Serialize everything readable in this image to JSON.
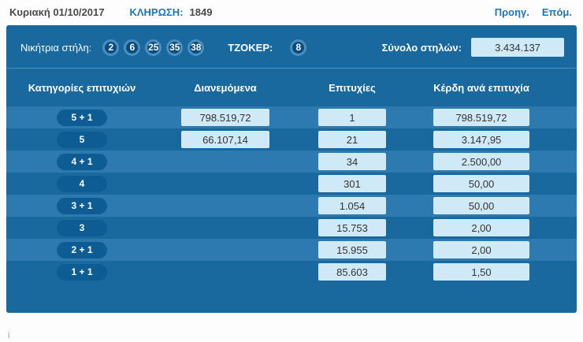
{
  "topbar": {
    "date": "Κυριακή 01/10/2017",
    "draw_label": "ΚΛΗΡΩΣΗ:",
    "draw_number": "1849",
    "prev_label": "Προηγ.",
    "next_label": "Επόμ."
  },
  "panel": {
    "winning_label": "Νικήτρια στήλη:",
    "numbers": [
      "2",
      "6",
      "25",
      "35",
      "38"
    ],
    "joker_label": "ΤΖΟΚΕΡ:",
    "joker_number": "8",
    "total_label": "Σύνολο στηλών:",
    "total_value": "3.434.137"
  },
  "table": {
    "headers": [
      "Κατηγορίες επιτυχιών",
      "Διανεμόμενα",
      "Επιτυχίες",
      "Κέρδη ανά επιτυχία"
    ],
    "rows": [
      {
        "category": "5 + 1",
        "distributed": "798.519,72",
        "wins": "1",
        "prize": "798.519,72"
      },
      {
        "category": "5",
        "distributed": "66.107,14",
        "wins": "21",
        "prize": "3.147,95"
      },
      {
        "category": "4 + 1",
        "distributed": "",
        "wins": "34",
        "prize": "2.500,00"
      },
      {
        "category": "4",
        "distributed": "",
        "wins": "301",
        "prize": "50,00"
      },
      {
        "category": "3 + 1",
        "distributed": "",
        "wins": "1.054",
        "prize": "50,00"
      },
      {
        "category": "3",
        "distributed": "",
        "wins": "15.753",
        "prize": "2,00"
      },
      {
        "category": "2 + 1",
        "distributed": "",
        "wins": "15.955",
        "prize": "2,00"
      },
      {
        "category": "1 + 1",
        "distributed": "",
        "wins": "85.603",
        "prize": "1,50"
      }
    ]
  },
  "footer": {
    "partial_text": "i"
  },
  "colors": {
    "panel_bg": "#19689e",
    "stripe_bg": "#2d7ab0",
    "pill_bg": "#0d5c94",
    "ball_bg": "#0a4c80",
    "ball_ring": "#4b8fc0",
    "value_box_bg": "#cfe9f7",
    "link_blue": "#1b75bb"
  }
}
